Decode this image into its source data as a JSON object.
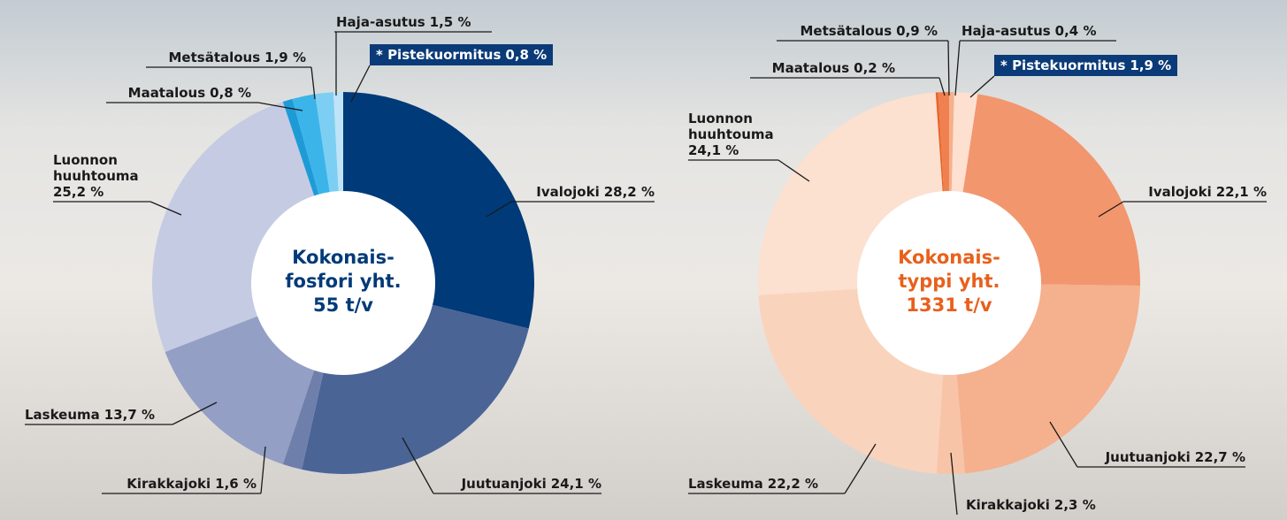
{
  "chart_data": [
    {
      "type": "pie",
      "center_label": [
        "Kokonais-",
        "fosfori yht.",
        "55 t/v"
      ],
      "center_color": "#003a78",
      "categories": [
        "Ivalojoki",
        "Juutuanjoki",
        "Kirakkajoki",
        "Laskeuma",
        "Luonnon huuhtouma",
        "Maatalous",
        "Metsätalous",
        "Haja-asutus",
        "* Pistekuormitus"
      ],
      "values": [
        28.2,
        24.1,
        1.6,
        13.7,
        25.2,
        0.8,
        1.9,
        1.5,
        0.8
      ],
      "value_labels": [
        "28,2 %",
        "24,1 %",
        "1,6 %",
        "13,7 %",
        "25,2 %",
        "0,8 %",
        "1,9 %",
        "1,5 %",
        "0,8 %"
      ],
      "colors": [
        "#003a78",
        "#4a6496",
        "#6f7fab",
        "#939fc4",
        "#c5cbe2",
        "#1e9bd7",
        "#3bb4ea",
        "#7ccff3",
        "#bfe3f7"
      ]
    },
    {
      "type": "pie",
      "center_label": [
        "Kokonais-",
        "typpi yht.",
        "1331 t/v"
      ],
      "center_color": "#e8601c",
      "categories": [
        "Ivalojoki",
        "Juutuanjoki",
        "Kirakkajoki",
        "Laskeuma",
        "Luonnon huuhtouma",
        "Maatalous",
        "Metsätalous",
        "Haja-asutus",
        "* Pistekuormitus"
      ],
      "values": [
        22.1,
        22.7,
        2.3,
        22.2,
        24.1,
        0.2,
        0.9,
        0.4,
        1.9
      ],
      "value_labels": [
        "22,1 %",
        "22,7 %",
        "2,3 %",
        "22,2 %",
        "24,1 %",
        "0,2 %",
        "0,9 %",
        "0,4 %",
        "1,9 %"
      ],
      "colors": [
        "#f2966e",
        "#f5b08e",
        "#f8c4a8",
        "#fad3bd",
        "#fce0d0",
        "#e8652a",
        "#f08050",
        "#f6b08a",
        "#fde0d0"
      ]
    }
  ]
}
